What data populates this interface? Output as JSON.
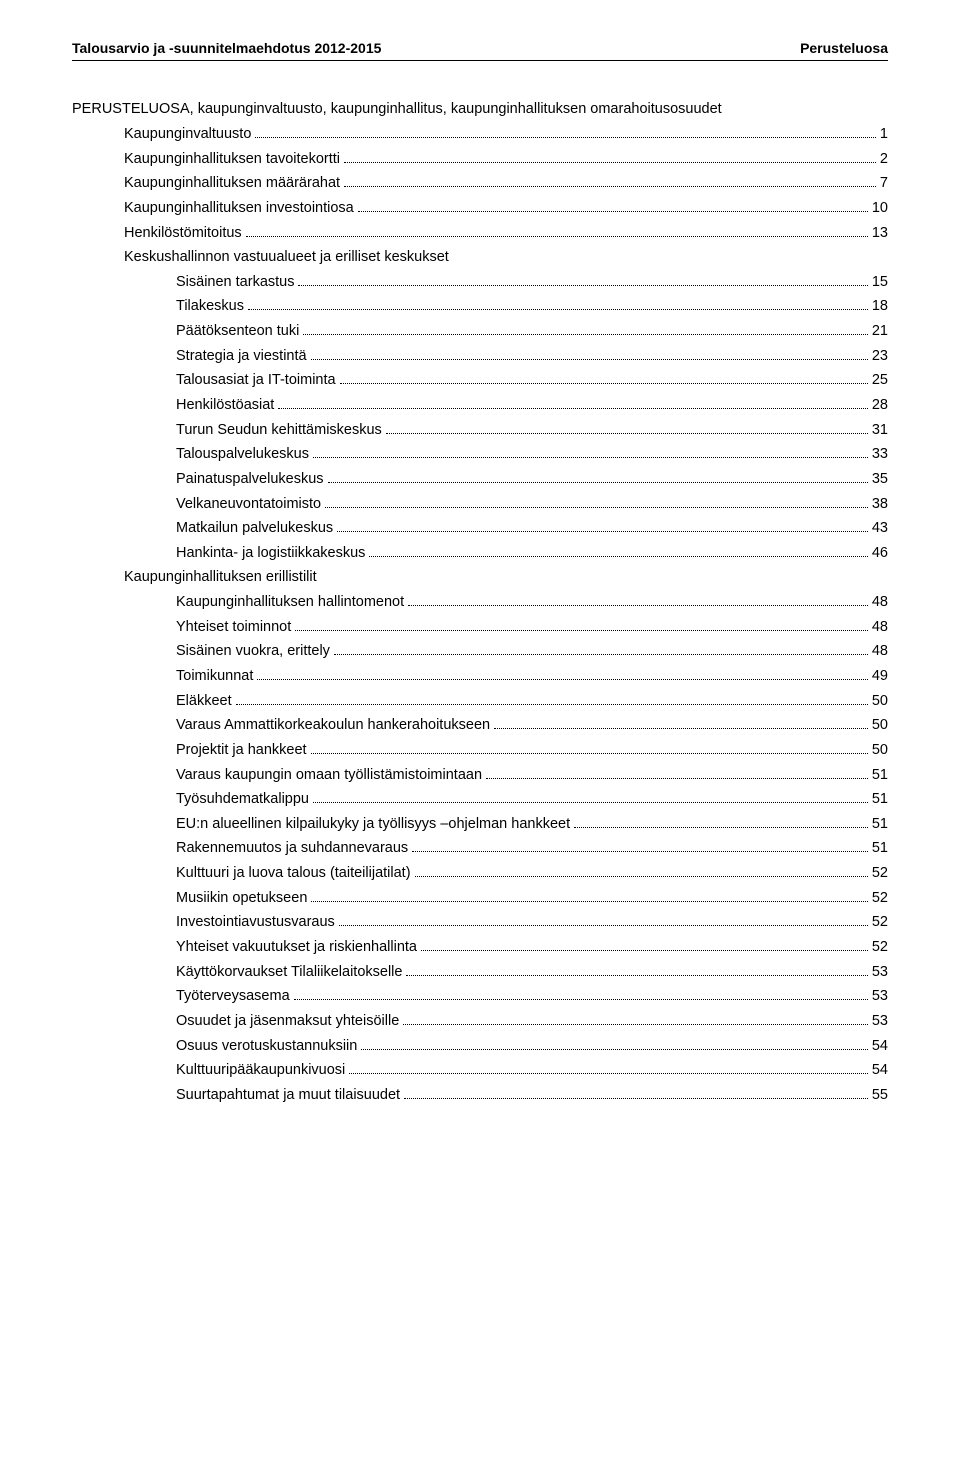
{
  "header": {
    "left": "Talousarvio ja -suunnitelmaehdotus 2012-2015",
    "right": "Perusteluosa"
  },
  "intro": "PERUSTELUOSA, kaupunginvaltuusto, kaupunginhallitus, kaupunginhallituksen omarahoitusosuudet",
  "toc": [
    {
      "label": "Kaupunginvaltuusto",
      "page": "1",
      "indent": 1
    },
    {
      "label": "Kaupunginhallituksen tavoitekortti",
      "page": "2",
      "indent": 1
    },
    {
      "label": "Kaupunginhallituksen määrärahat",
      "page": "7",
      "indent": 1
    },
    {
      "label": "Kaupunginhallituksen investointiosa",
      "page": "10",
      "indent": 1
    },
    {
      "label": "Henkilöstömitoitus",
      "page": "13",
      "indent": 1
    },
    {
      "label": "Keskushallinnon vastuualueet ja erilliset keskukset",
      "page": "",
      "indent": 1
    },
    {
      "label": "Sisäinen tarkastus",
      "page": "15",
      "indent": 2
    },
    {
      "label": "Tilakeskus",
      "page": "18",
      "indent": 2
    },
    {
      "label": "Päätöksenteon tuki",
      "page": "21",
      "indent": 2
    },
    {
      "label": "Strategia ja viestintä",
      "page": "23",
      "indent": 2
    },
    {
      "label": "Talousasiat ja IT-toiminta",
      "page": "25",
      "indent": 2
    },
    {
      "label": "Henkilöstöasiat",
      "page": "28",
      "indent": 2
    },
    {
      "label": "Turun Seudun kehittämiskeskus",
      "page": "31",
      "indent": 2
    },
    {
      "label": "Talouspalvelukeskus",
      "page": "33",
      "indent": 2
    },
    {
      "label": "Painatuspalvelukeskus",
      "page": "35",
      "indent": 2
    },
    {
      "label": "Velkaneuvontatoimisto",
      "page": "38",
      "indent": 2
    },
    {
      "label": "Matkailun palvelukeskus",
      "page": "43",
      "indent": 2
    },
    {
      "label": "Hankinta- ja logistiikkakeskus",
      "page": "46",
      "indent": 2
    },
    {
      "label": "Kaupunginhallituksen erillistilit",
      "page": "",
      "indent": 1
    },
    {
      "label": "Kaupunginhallituksen hallintomenot",
      "page": "48",
      "indent": 2
    },
    {
      "label": "Yhteiset toiminnot",
      "page": "48",
      "indent": 2
    },
    {
      "label": "Sisäinen vuokra, erittely",
      "page": "48",
      "indent": 2
    },
    {
      "label": "Toimikunnat",
      "page": "49",
      "indent": 2
    },
    {
      "label": "Eläkkeet",
      "page": "50",
      "indent": 2
    },
    {
      "label": "Varaus Ammattikorkeakoulun hankerahoitukseen",
      "page": "50",
      "indent": 2
    },
    {
      "label": "Projektit ja hankkeet",
      "page": "50",
      "indent": 2
    },
    {
      "label": "Varaus kaupungin omaan työllistämistoimintaan",
      "page": "51",
      "indent": 2
    },
    {
      "label": "Työsuhdematkalippu",
      "page": "51",
      "indent": 2
    },
    {
      "label": "EU:n alueellinen kilpailukyky ja työllisyys –ohjelman hankkeet",
      "page": "51",
      "indent": 2
    },
    {
      "label": "Rakennemuutos ja suhdannevaraus",
      "page": "51",
      "indent": 2
    },
    {
      "label": "Kulttuuri ja luova talous (taiteilijatilat)",
      "page": "52",
      "indent": 2
    },
    {
      "label": "Musiikin opetukseen",
      "page": "52",
      "indent": 2
    },
    {
      "label": "Investointiavustusvaraus",
      "page": "52",
      "indent": 2
    },
    {
      "label": "Yhteiset vakuutukset ja riskienhallinta",
      "page": "52",
      "indent": 2
    },
    {
      "label": "Käyttökorvaukset Tilaliikelaitokselle",
      "page": "53",
      "indent": 2
    },
    {
      "label": "Työterveysasema",
      "page": "53",
      "indent": 2
    },
    {
      "label": "Osuudet ja jäsenmaksut yhteisöille",
      "page": "53",
      "indent": 2
    },
    {
      "label": "Osuus verotuskustannuksiin",
      "page": "54",
      "indent": 2
    },
    {
      "label": "Kulttuuripääkaupunkivuosi",
      "page": "54",
      "indent": 2
    },
    {
      "label": "Suurtapahtumat ja muut tilaisuudet",
      "page": "55",
      "indent": 2
    }
  ]
}
